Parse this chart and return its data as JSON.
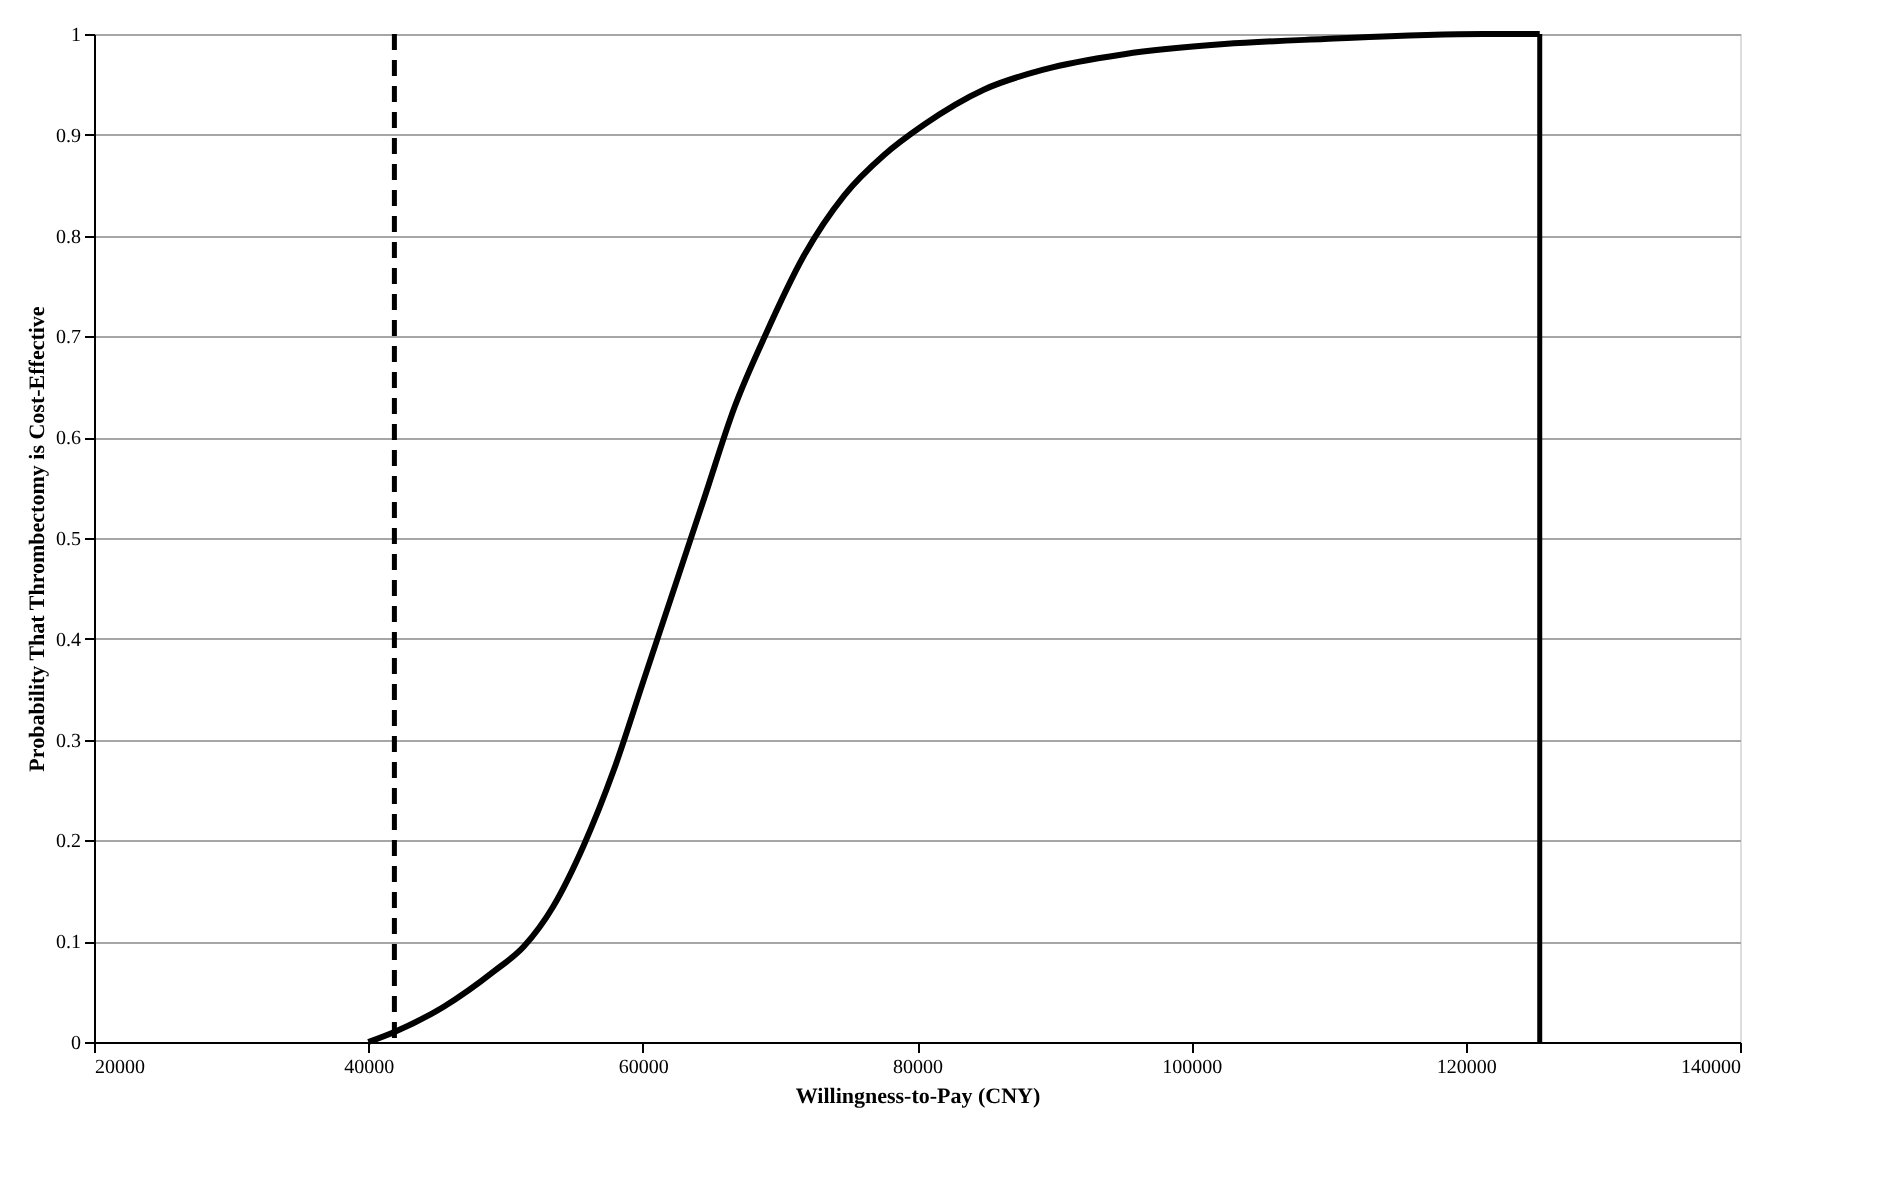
{
  "chart_data": {
    "type": "line",
    "xlabel": "Willingness-to-Pay (CNY)",
    "ylabel": "Probability That Thrombectomy is Cost-Effective",
    "xlim": [
      20000,
      140000
    ],
    "xticks": [
      20000,
      40000,
      60000,
      80000,
      100000,
      120000,
      140000
    ],
    "ylim": [
      0,
      1
    ],
    "yticks": [
      0,
      0.1,
      0.2,
      0.3,
      0.4,
      0.5,
      0.6,
      0.7,
      0.8,
      0.9,
      1
    ],
    "grid": "y",
    "marker": "none",
    "series": [
      {
        "color": "#000000",
        "line_style": "solid",
        "x": [
          40000,
          41900,
          45500,
          49150,
          51350,
          53500,
          55700,
          57900,
          60100,
          62300,
          64500,
          66700,
          68900,
          71750,
          74700,
          77600,
          80500,
          84900,
          89300,
          95100,
          102400,
          109700,
          121300,
          125400
        ],
        "values": [
          0,
          0.01,
          0.035,
          0.07,
          0.095,
          0.135,
          0.195,
          0.27,
          0.36,
          0.45,
          0.54,
          0.63,
          0.7,
          0.78,
          0.84,
          0.88,
          0.91,
          0.945,
          0.965,
          0.98,
          0.99,
          0.995,
          1,
          1
        ]
      }
    ],
    "ref_lines": [
      {
        "axis": "x",
        "value": 41900,
        "color": "#000000",
        "line_style": "dashed"
      },
      {
        "axis": "x",
        "value": 125400,
        "color": "#000000",
        "line_style": "solid"
      }
    ]
  }
}
